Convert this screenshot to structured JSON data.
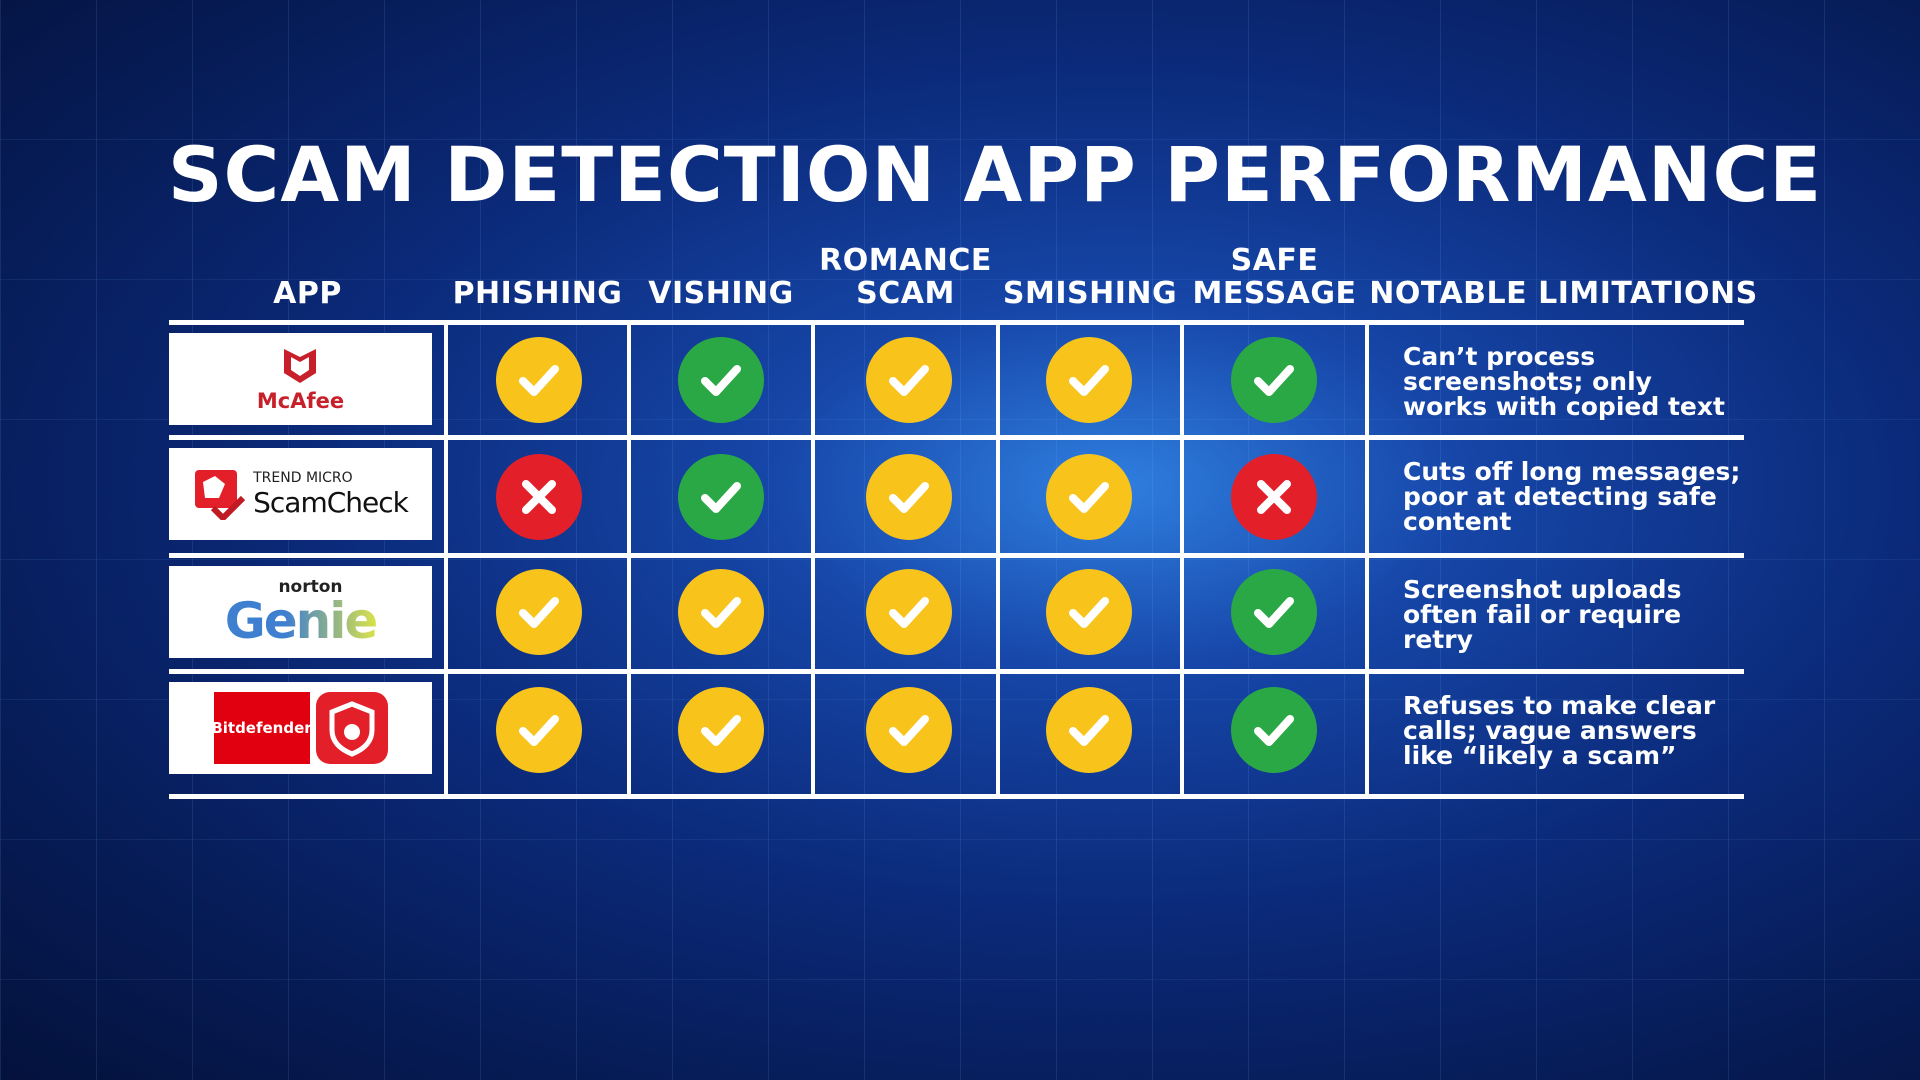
{
  "title": "SCAM DETECTION APP PERFORMANCE",
  "colors": {
    "yes": "#f8c41c",
    "strong_yes": "#2aa846",
    "no": "#e3202a"
  },
  "headers": [
    "APP",
    "PHISHING",
    "VISHING",
    "ROMANCE SCAM",
    "SMISHING",
    "SAFE MESSAGE",
    "NOTABLE LIMITATIONS"
  ],
  "rows": [
    {
      "app": "McAfee",
      "logo_text": "McAfee",
      "results": [
        "yellow-check",
        "green-check",
        "yellow-check",
        "yellow-check",
        "green-check"
      ],
      "note": "Can’t process screenshots; only works with copied text"
    },
    {
      "app": "Trend Micro ScamCheck",
      "logo_small": "TREND MICRO",
      "logo_text": "ScamCheck",
      "results": [
        "red-x",
        "green-check",
        "yellow-check",
        "yellow-check",
        "red-x"
      ],
      "note": "Cuts off long messages; poor at detecting safe content"
    },
    {
      "app": "Norton Genie",
      "logo_small": "norton",
      "logo_text": "Genie",
      "results": [
        "yellow-check",
        "yellow-check",
        "yellow-check",
        "yellow-check",
        "green-check"
      ],
      "note": "Screenshot uploads often fail or require retry"
    },
    {
      "app": "Bitdefender",
      "logo_text": "Bitdefender",
      "results": [
        "yellow-check",
        "yellow-check",
        "yellow-check",
        "yellow-check",
        "green-check"
      ],
      "note": "Refuses to make clear calls; vague answers like “likely a scam”"
    }
  ]
}
